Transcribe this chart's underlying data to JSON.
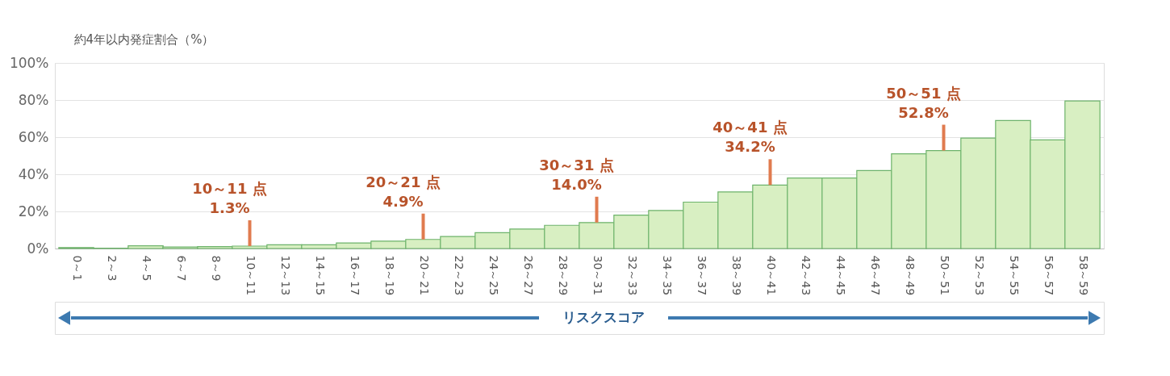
{
  "chart_data": {
    "type": "bar",
    "ylabel": "約4年以内発症割合（%）",
    "xlabel": "リスクスコア",
    "categories": [
      "0～1",
      "2～3",
      "4～5",
      "6～7",
      "8～9",
      "10～11",
      "12～13",
      "14～15",
      "16～17",
      "18～19",
      "20～21",
      "22～23",
      "24～25",
      "26～27",
      "28～29",
      "30～31",
      "32～33",
      "34～35",
      "36～37",
      "38～39",
      "40～41",
      "42～43",
      "44～45",
      "46～47",
      "48～49",
      "50～51",
      "52～53",
      "54～55",
      "56～57",
      "58～59"
    ],
    "values": [
      0.5,
      0.2,
      1.5,
      0.8,
      1.0,
      1.3,
      2.0,
      2.0,
      3.0,
      4.0,
      4.9,
      6.5,
      8.5,
      10.5,
      12.5,
      14.0,
      18.0,
      20.5,
      25.0,
      30.5,
      34.2,
      38.0,
      38.0,
      42.0,
      51.0,
      52.8,
      59.5,
      69.0,
      58.5,
      79.5
    ],
    "color": "#d8efc2",
    "ylim": [
      0,
      100
    ],
    "yticks": [
      {
        "value": 0,
        "label": "0%"
      },
      {
        "value": 20,
        "label": "20%"
      },
      {
        "value": 40,
        "label": "40%"
      },
      {
        "value": 60,
        "label": "60%"
      },
      {
        "value": 80,
        "label": "80%"
      },
      {
        "value": 100,
        "label": "100%"
      }
    ],
    "grid": "y",
    "annotations": [
      {
        "text": "10～11 点\n1.3%",
        "x": "10～11",
        "y": 1.3
      },
      {
        "text": "20～21 点\n4.9%",
        "x": "20～21",
        "y": 4.9
      },
      {
        "text": "30～31 点\n14.0%",
        "x": "30～31",
        "y": 14.0
      },
      {
        "text": "40～41 点\n34.2%",
        "x": "40～41",
        "y": 34.2
      },
      {
        "text": "50～51 点\n52.8%",
        "x": "50～51",
        "y": 52.8
      }
    ]
  }
}
